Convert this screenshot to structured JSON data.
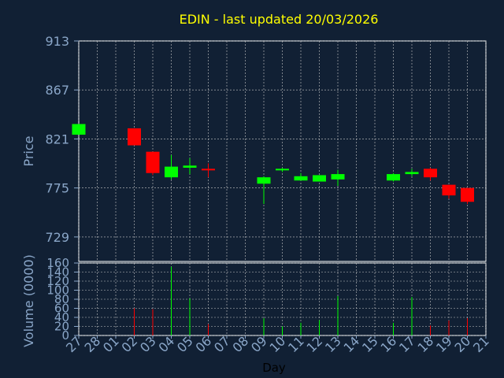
{
  "title": "EDIN - last updated 20/03/2026",
  "colors": {
    "background": "#112034",
    "title": "#ffff00",
    "axis_text": "#8aa6c8",
    "grid": "#c8c8c8",
    "up": "#00ff00",
    "down": "#ff0000",
    "day_label": "#000000"
  },
  "chart_data": [
    {
      "type": "candlestick",
      "ylabel": "Price",
      "ylim": [
        706,
        913
      ],
      "yticks": [
        913,
        867,
        821,
        775,
        729
      ],
      "days": [
        "27",
        "28",
        "01",
        "02",
        "03",
        "04",
        "05",
        "06",
        "07",
        "08",
        "09",
        "10",
        "11",
        "12",
        "13",
        "14",
        "15",
        "16",
        "17",
        "18",
        "19",
        "20",
        "21"
      ],
      "grid": true,
      "candles": [
        {
          "day": "27",
          "open": 825,
          "high": 835,
          "low": 825,
          "close": 835
        },
        {
          "day": "02",
          "open": 831,
          "high": 831,
          "low": 815,
          "close": 815
        },
        {
          "day": "03",
          "open": 809,
          "high": 809,
          "low": 787,
          "close": 789
        },
        {
          "day": "04",
          "open": 785,
          "high": 806,
          "low": 783,
          "close": 795
        },
        {
          "day": "05",
          "open": 794,
          "high": 803,
          "low": 788,
          "close": 796
        },
        {
          "day": "06",
          "open": 793,
          "high": 798,
          "low": 785,
          "close": 792
        },
        {
          "day": "09",
          "open": 779,
          "high": 786,
          "low": 760,
          "close": 785
        },
        {
          "day": "10",
          "open": 792,
          "high": 794,
          "low": 790,
          "close": 793
        },
        {
          "day": "11",
          "open": 782,
          "high": 789,
          "low": 782,
          "close": 786
        },
        {
          "day": "12",
          "open": 781,
          "high": 787,
          "low": 781,
          "close": 787
        },
        {
          "day": "13",
          "open": 783,
          "high": 792,
          "low": 777,
          "close": 788
        },
        {
          "day": "16",
          "open": 782,
          "high": 789,
          "low": 781,
          "close": 788
        },
        {
          "day": "17",
          "open": 788,
          "high": 793,
          "low": 786,
          "close": 790
        },
        {
          "day": "18",
          "open": 793,
          "high": 794,
          "low": 782,
          "close": 785
        },
        {
          "day": "19",
          "open": 778,
          "high": 778,
          "low": 765,
          "close": 768
        },
        {
          "day": "20",
          "open": 775,
          "high": 775,
          "low": 760,
          "close": 762
        }
      ]
    },
    {
      "type": "bar",
      "ylabel": "Volume (0000)",
      "ylim": [
        0,
        160
      ],
      "yticks": [
        0,
        20,
        40,
        60,
        80,
        100,
        120,
        140,
        160
      ],
      "xlabel": "Day",
      "grid": true,
      "bars": [
        {
          "day": "02",
          "value": 60,
          "direction": "down"
        },
        {
          "day": "03",
          "value": 58,
          "direction": "down"
        },
        {
          "day": "04",
          "value": 152,
          "direction": "up"
        },
        {
          "day": "05",
          "value": 82,
          "direction": "up"
        },
        {
          "day": "06",
          "value": 25,
          "direction": "down"
        },
        {
          "day": "09",
          "value": 38,
          "direction": "up"
        },
        {
          "day": "10",
          "value": 20,
          "direction": "up"
        },
        {
          "day": "11",
          "value": 28,
          "direction": "up"
        },
        {
          "day": "12",
          "value": 34,
          "direction": "up"
        },
        {
          "day": "13",
          "value": 87,
          "direction": "up"
        },
        {
          "day": "16",
          "value": 28,
          "direction": "up"
        },
        {
          "day": "17",
          "value": 85,
          "direction": "up"
        },
        {
          "day": "18",
          "value": 22,
          "direction": "down"
        },
        {
          "day": "19",
          "value": 33,
          "direction": "down"
        },
        {
          "day": "20",
          "value": 38,
          "direction": "down"
        }
      ]
    }
  ]
}
